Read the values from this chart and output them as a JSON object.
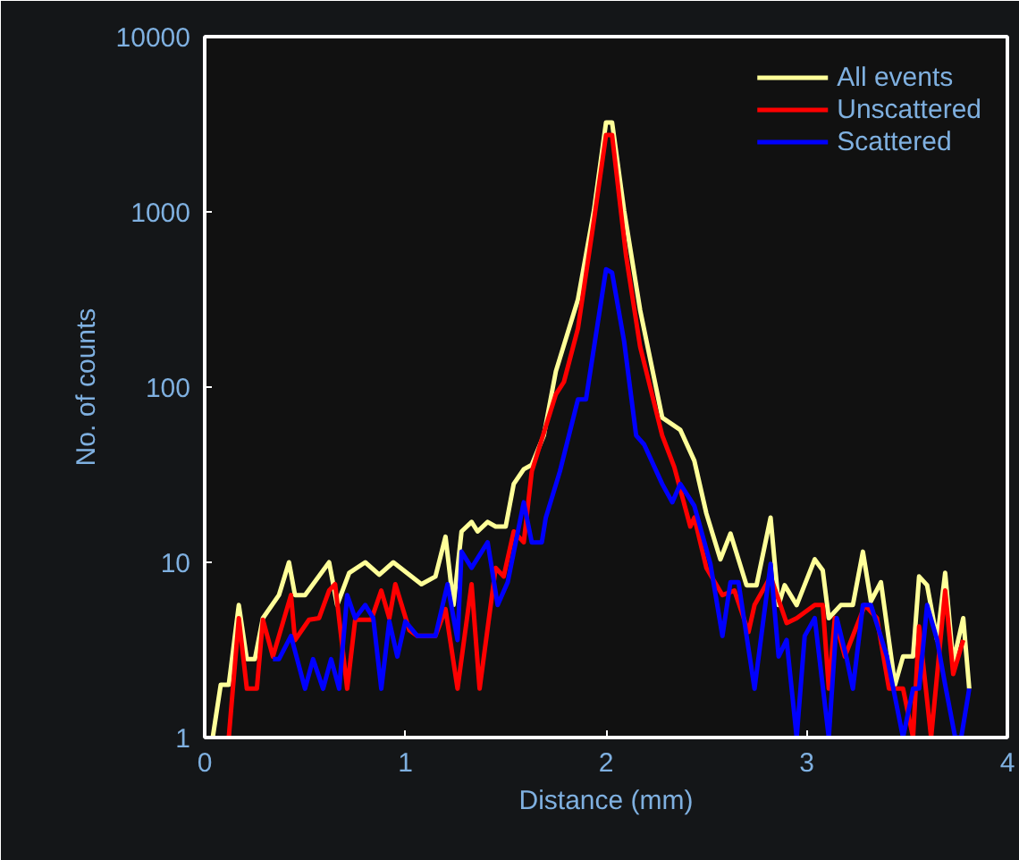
{
  "chart_data": {
    "type": "line",
    "xlabel": "Distance (mm)",
    "ylabel": "No. of counts",
    "log": "y",
    "xlim": [
      0,
      4
    ],
    "xticks": [
      0,
      1,
      2,
      3,
      4
    ],
    "ylim": [
      1,
      10000
    ],
    "yticks": [
      1,
      10,
      100,
      1000,
      10000
    ],
    "grid": false,
    "legend": "top right",
    "marker": "none",
    "line_style": "solid",
    "series": [
      {
        "name": "All events",
        "color": "#ffff99",
        "x": [
          0.04,
          0.08,
          0.12,
          0.17,
          0.21,
          0.25,
          0.29,
          0.37,
          0.42,
          0.45,
          0.5,
          0.62,
          0.66,
          0.72,
          0.8,
          0.87,
          0.94,
          1.08,
          1.15,
          1.2,
          1.24,
          1.28,
          1.33,
          1.36,
          1.41,
          1.45,
          1.5,
          1.54,
          1.59,
          1.63,
          1.69,
          1.75,
          1.86,
          1.94,
          2.0,
          2.03,
          2.09,
          2.17,
          2.28,
          2.37,
          2.44,
          2.5,
          2.57,
          2.62,
          2.7,
          2.75,
          2.82,
          2.86,
          2.89,
          2.95,
          3.04,
          3.08,
          3.11,
          3.17,
          3.23,
          3.28,
          3.32,
          3.37,
          3.44,
          3.48,
          3.53,
          3.56,
          3.6,
          3.65,
          3.69,
          3.73,
          3.78,
          3.81
        ],
        "values": [
          1,
          2,
          2,
          5.7,
          2.8,
          2.8,
          4.8,
          6.5,
          10,
          6.5,
          6.5,
          10,
          5.7,
          8.7,
          10,
          8.5,
          10,
          7.5,
          8.3,
          14,
          5.7,
          15,
          17,
          15,
          17,
          16,
          16,
          28,
          34,
          36,
          53,
          123,
          316,
          1020,
          3240,
          3240,
          1020,
          275,
          67,
          57,
          38,
          19,
          10.4,
          14.6,
          7.4,
          7.4,
          18,
          5.7,
          7.4,
          5.7,
          10.4,
          9,
          4.8,
          5.7,
          5.7,
          11.5,
          6,
          7.7,
          2,
          2.9,
          2.9,
          8.3,
          7.4,
          3.6,
          8.7,
          2.7,
          4.8,
          1.9
        ]
      },
      {
        "name": "Unscattered",
        "color": "#ff0000",
        "x": [
          0.12,
          0.17,
          0.21,
          0.26,
          0.29,
          0.34,
          0.43,
          0.45,
          0.52,
          0.57,
          0.62,
          0.65,
          0.71,
          0.75,
          0.83,
          0.88,
          0.92,
          0.95,
          1.02,
          1.06,
          1.15,
          1.2,
          1.26,
          1.33,
          1.37,
          1.45,
          1.49,
          1.54,
          1.59,
          1.63,
          1.75,
          1.79,
          1.86,
          1.94,
          2.0,
          2.03,
          2.1,
          2.17,
          2.28,
          2.34,
          2.42,
          2.44,
          2.5,
          2.58,
          2.64,
          2.71,
          2.74,
          2.82,
          2.9,
          2.95,
          3.04,
          3.08,
          3.11,
          3.14,
          3.19,
          3.29,
          3.35,
          3.41,
          3.48,
          3.53,
          3.56,
          3.62,
          3.69,
          3.73,
          3.78
        ],
        "values": [
          1,
          4.8,
          1.9,
          1.9,
          4.7,
          2.9,
          6.5,
          3.6,
          4.7,
          4.8,
          6.9,
          7.5,
          1.9,
          4.7,
          4.7,
          6.9,
          4.8,
          7.5,
          4.1,
          3.8,
          3.8,
          5.4,
          1.9,
          7.5,
          1.9,
          9.3,
          8.3,
          15,
          13,
          33,
          91,
          107,
          216,
          900,
          2750,
          2750,
          560,
          170,
          53,
          35,
          16,
          18,
          9.3,
          6.5,
          6.9,
          4,
          5.7,
          8.3,
          4.5,
          4.8,
          5.7,
          5.7,
          1.9,
          4.8,
          2.9,
          5.7,
          4.8,
          1.9,
          1.9,
          1,
          4.3,
          1,
          6.9,
          2.3,
          3.6
        ]
      },
      {
        "name": "Scattered",
        "color": "#0000ff",
        "x": [
          0.34,
          0.37,
          0.43,
          0.5,
          0.54,
          0.59,
          0.63,
          0.67,
          0.71,
          0.75,
          0.8,
          0.84,
          0.88,
          0.92,
          0.96,
          1.0,
          1.06,
          1.15,
          1.21,
          1.26,
          1.28,
          1.33,
          1.41,
          1.46,
          1.51,
          1.59,
          1.63,
          1.68,
          1.7,
          1.77,
          1.86,
          1.9,
          2.0,
          2.03,
          2.09,
          2.15,
          2.19,
          2.28,
          2.33,
          2.37,
          2.44,
          2.52,
          2.58,
          2.62,
          2.66,
          2.74,
          2.82,
          2.86,
          2.9,
          2.95,
          2.99,
          3.04,
          3.11,
          3.15,
          3.2,
          3.23,
          3.28,
          3.32,
          3.4,
          3.48,
          3.53,
          3.56,
          3.6,
          3.65,
          3.69,
          3.74,
          3.77,
          3.81
        ],
        "values": [
          2.8,
          2.8,
          3.8,
          1.9,
          2.8,
          1.9,
          2.8,
          1.9,
          6.5,
          4.8,
          5.7,
          4.8,
          1.9,
          4.6,
          2.9,
          4.6,
          3.8,
          3.8,
          7.5,
          3.6,
          11.5,
          9.3,
          13,
          5.7,
          7.7,
          22,
          13,
          13,
          18,
          33,
          85,
          85,
          470,
          450,
          183,
          53,
          47,
          28,
          22,
          28,
          21,
          9.8,
          3.8,
          7.7,
          7.7,
          1.9,
          9.8,
          2.9,
          3.6,
          1,
          3.8,
          4.8,
          1,
          4.8,
          2.8,
          1.9,
          5.7,
          5.7,
          2.9,
          1,
          1.9,
          1.9,
          5.7,
          3.6,
          2,
          1,
          1,
          1.9
        ]
      }
    ]
  }
}
